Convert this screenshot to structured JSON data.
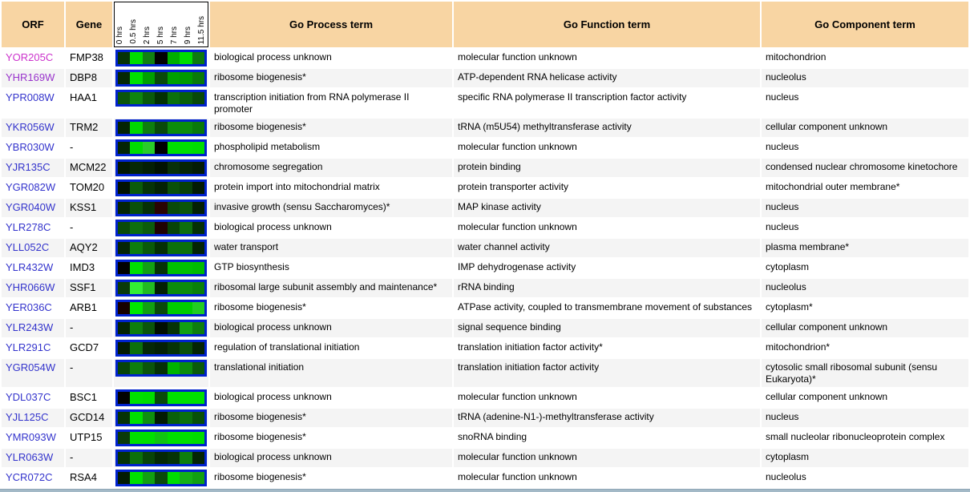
{
  "header": {
    "orf": "ORF",
    "gene": "Gene",
    "process": "Go Process term",
    "function": "Go Function term",
    "component": "Go Component term",
    "time_labels": [
      "0 hrs",
      "0.5 hrs",
      "2 hrs",
      "5 hrs",
      "7 hrs",
      "9 hrs",
      "11.5 hrs"
    ],
    "header_bg": "#F8D5A3"
  },
  "colors": {
    "link_blue": "#3333CC",
    "visited_magenta": "#CC33CC",
    "visited_purple": "#9933CC",
    "heatmap_border": "#0022CC",
    "row_even_bg": "#FFFFFF",
    "row_odd_bg": "#F4F4F4",
    "bottom_bar": "#A3B9C7"
  },
  "rows": [
    {
      "orf": "YOR205C",
      "orf_color": "#CC33CC",
      "gene": "FMP38",
      "heatmap": [
        "#063306",
        "#00DD00",
        "#118011",
        "#020202",
        "#00AE00",
        "#00DD00",
        "#0E7A0E"
      ],
      "process": "biological process unknown",
      "function": "molecular function unknown",
      "component": "mitochondrion"
    },
    {
      "orf": "YHR169W",
      "orf_color": "#9933CC",
      "gene": "DBP8",
      "heatmap": [
        "#052805",
        "#00E000",
        "#00A000",
        "#0A4A0A",
        "#00A000",
        "#009900",
        "#0A7A0A"
      ],
      "process": "ribosome biogenesis*",
      "function": "ATP-dependent RNA helicase activity",
      "component": "nucleolus"
    },
    {
      "orf": "YPR008W",
      "orf_color": "#3333CC",
      "gene": "HAA1",
      "heatmap": [
        "#0B550B",
        "#0F850F",
        "#0A5A0A",
        "#033003",
        "#0C700C",
        "#0A600A",
        "#084808"
      ],
      "process": "transcription initiation from RNA polymerase II promoter",
      "function": "specific RNA polymerase II transcription factor activity",
      "component": "nucleus"
    },
    {
      "orf": "YKR056W",
      "orf_color": "#3333CC",
      "gene": "TRM2",
      "heatmap": [
        "#042404",
        "#00D800",
        "#0E7E0E",
        "#0A4A0A",
        "#0C8C0C",
        "#0C8C0C",
        "#0A7A0A"
      ],
      "process": "ribosome biogenesis*",
      "function": "tRNA (m5U54) methyltransferase activity",
      "component": "cellular component unknown"
    },
    {
      "orf": "YBR030W",
      "orf_color": "#3333CC",
      "gene": "-",
      "heatmap": [
        "#042404",
        "#00DD00",
        "#2ACC2A",
        "#000000",
        "#00E000",
        "#00E000",
        "#00DD00"
      ],
      "process": "phospholipid metabolism",
      "function": "molecular function unknown",
      "component": "nucleus"
    },
    {
      "orf": "YJR135C",
      "orf_color": "#3333CC",
      "gene": "MCM22",
      "heatmap": [
        "#031803",
        "#062806",
        "#041F04",
        "#021202",
        "#083008",
        "#062406",
        "#041C04"
      ],
      "process": "chromosome segregation",
      "function": "protein binding",
      "component": "condensed nuclear chromosome kinetochore"
    },
    {
      "orf": "YGR082W",
      "orf_color": "#3333CC",
      "gene": "TOM20",
      "heatmap": [
        "#021202",
        "#0B5B0B",
        "#063306",
        "#042204",
        "#0A500A",
        "#084008",
        "#031B03"
      ],
      "process": "protein import into mitochondrial matrix",
      "function": "protein transporter activity",
      "component": "mitochondrial outer membrane*"
    },
    {
      "orf": "YGR040W",
      "orf_color": "#3333CC",
      "gene": "KSS1",
      "heatmap": [
        "#052505",
        "#0A500A",
        "#063006",
        "#2A0404",
        "#0A4A0A",
        "#0B550B",
        "#042004"
      ],
      "process": "invasive growth (sensu Saccharomyces)*",
      "function": "MAP kinase activity",
      "component": "nucleus"
    },
    {
      "orf": "YLR278C",
      "orf_color": "#3333CC",
      "gene": "-",
      "heatmap": [
        "#0A4A0A",
        "#0E6E0E",
        "#0C5C0C",
        "#200202",
        "#084408",
        "#0E6E0E",
        "#053005"
      ],
      "process": "biological process unknown",
      "function": "molecular function unknown",
      "component": "nucleus"
    },
    {
      "orf": "YLL052C",
      "orf_color": "#3333CC",
      "gene": "AQY2",
      "heatmap": [
        "#052505",
        "#0E7E0E",
        "#0A5A0A",
        "#053005",
        "#0C700C",
        "#0C700C",
        "#042404"
      ],
      "process": "water transport",
      "function": "water channel activity",
      "component": "plasma membrane*"
    },
    {
      "orf": "YLR432W",
      "orf_color": "#3333CC",
      "gene": "IMD3",
      "heatmap": [
        "#010101",
        "#00E000",
        "#13A013",
        "#063306",
        "#00C000",
        "#00C000",
        "#00BB00"
      ],
      "process": "GTP biosynthesis",
      "function": "IMP dehydrogenase activity",
      "component": "cytoplasm"
    },
    {
      "orf": "YHR066W",
      "orf_color": "#3333CC",
      "gene": "SSF1",
      "heatmap": [
        "#0A3A0A",
        "#33EE33",
        "#22BB22",
        "#032003",
        "#0C8C0C",
        "#0C8C0C",
        "#0A800A"
      ],
      "process": "ribosomal large subunit assembly and maintenance*",
      "function": "rRNA binding",
      "component": "nucleolus"
    },
    {
      "orf": "YER036C",
      "orf_color": "#3333CC",
      "gene": "ARB1",
      "heatmap": [
        "#160000",
        "#00E800",
        "#12A012",
        "#0A4A0A",
        "#00CC00",
        "#00CC00",
        "#22CC22"
      ],
      "process": "ribosome biogenesis*",
      "function": "ATPase activity, coupled to transmembrane movement of substances",
      "component": "cytoplasm*"
    },
    {
      "orf": "YLR243W",
      "orf_color": "#3333CC",
      "gene": "-",
      "heatmap": [
        "#042404",
        "#0E7E0E",
        "#0B550B",
        "#010E01",
        "#063306",
        "#12A012",
        "#0E7E0E"
      ],
      "process": "biological process unknown",
      "function": "signal sequence binding",
      "component": "cellular component unknown"
    },
    {
      "orf": "YLR291C",
      "orf_color": "#3333CC",
      "gene": "GCD7",
      "heatmap": [
        "#031B03",
        "#0C700C",
        "#052805",
        "#042004",
        "#063306",
        "#0A500A",
        "#042404"
      ],
      "process": "regulation of translational initiation",
      "function": "translation initiation factor activity*",
      "component": "mitochondrion*"
    },
    {
      "orf": "YGR054W",
      "orf_color": "#3333CC",
      "gene": "-",
      "heatmap": [
        "#084408",
        "#0E7E0E",
        "#0B550B",
        "#053005",
        "#00B400",
        "#0C8C0C",
        "#0A5A0A"
      ],
      "process": "translational initiation",
      "function": "translation initiation factor activity",
      "component": "cytosolic small ribosomal subunit (sensu Eukaryota)*"
    },
    {
      "orf": "YDL037C",
      "orf_color": "#3333CC",
      "gene": "BSC1",
      "heatmap": [
        "#020202",
        "#00E000",
        "#00DD00",
        "#0A4A0A",
        "#00E000",
        "#00E000",
        "#00E000"
      ],
      "process": "biological process unknown",
      "function": "molecular function unknown",
      "component": "cellular component unknown"
    },
    {
      "orf": "YJL125C",
      "orf_color": "#3333CC",
      "gene": "GCD14",
      "heatmap": [
        "#063306",
        "#00E000",
        "#0F8F0F",
        "#031B03",
        "#0A600A",
        "#0C700C",
        "#085008"
      ],
      "process": "ribosome biogenesis*",
      "function": "tRNA (adenine-N1-)-methyltransferase activity",
      "component": "nucleus"
    },
    {
      "orf": "YMR093W",
      "orf_color": "#3333CC",
      "gene": "UTP15",
      "heatmap": [
        "#0A3A0A",
        "#00E000",
        "#00E000",
        "#11C511",
        "#00E000",
        "#00E000",
        "#00DD00"
      ],
      "process": "ribosome biogenesis*",
      "function": "snoRNA binding",
      "component": "small nucleolar ribonucleoprotein complex"
    },
    {
      "orf": "YLR063W",
      "orf_color": "#3333CC",
      "gene": "-",
      "heatmap": [
        "#063306",
        "#0C700C",
        "#084408",
        "#052805",
        "#063306",
        "#0E7E0E",
        "#042404"
      ],
      "process": "biological process unknown",
      "function": "molecular function unknown",
      "component": "cytoplasm"
    },
    {
      "orf": "YCR072C",
      "orf_color": "#3333CC",
      "gene": "RSA4",
      "heatmap": [
        "#031B03",
        "#00E000",
        "#12A012",
        "#0A4A0A",
        "#00DD00",
        "#16B016",
        "#12A012"
      ],
      "process": "ribosome biogenesis*",
      "function": "molecular function unknown",
      "component": "nucleolus"
    }
  ]
}
